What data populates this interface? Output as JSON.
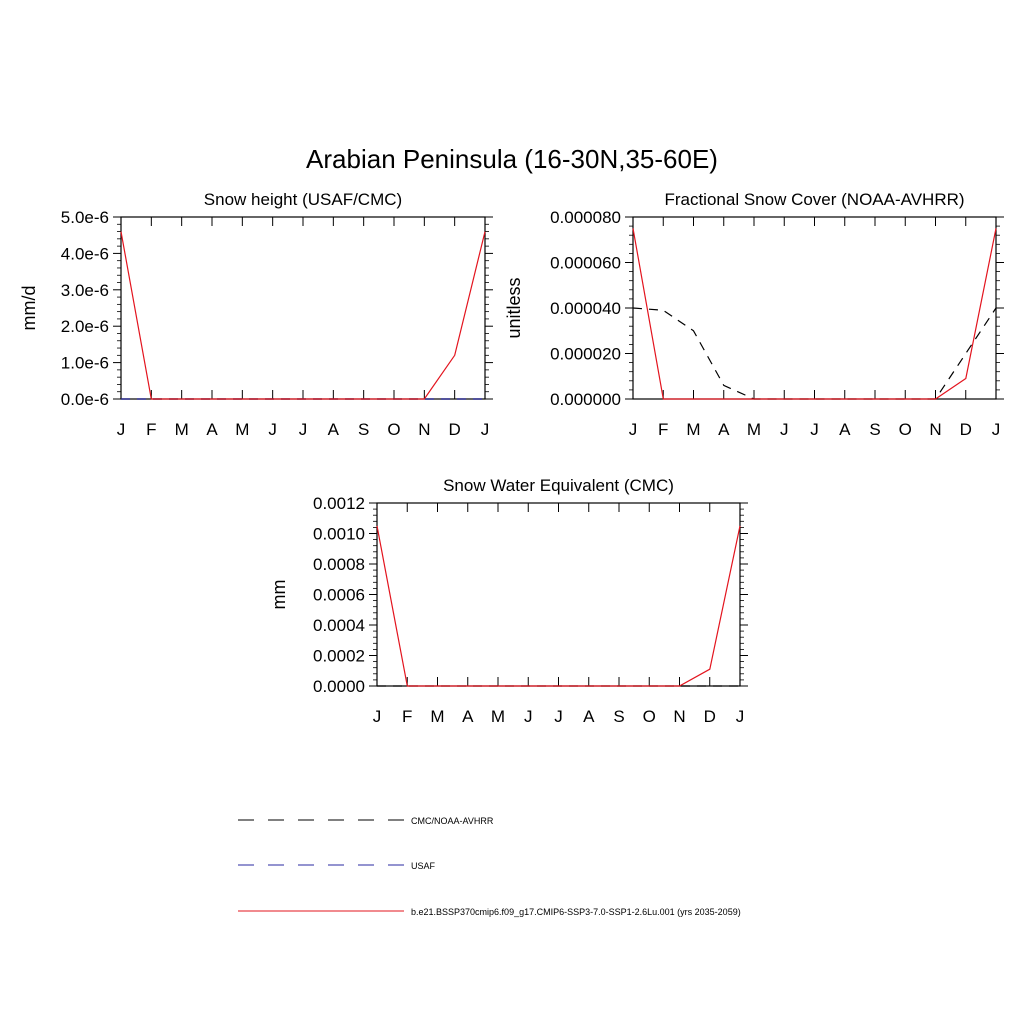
{
  "figure": {
    "title": "Arabian Peninsula (16-30N,35-60E)"
  },
  "chart_data": [
    {
      "type": "line",
      "title": "Snow height (USAF/CMC)",
      "xlabel": "",
      "ylabel": "mm/d",
      "categories": [
        "J",
        "F",
        "M",
        "A",
        "M",
        "J",
        "J",
        "A",
        "S",
        "O",
        "N",
        "D",
        "J"
      ],
      "ylim": [
        0,
        5e-06
      ],
      "ytick_values": [
        0,
        1e-06,
        2e-06,
        3e-06,
        4e-06,
        5e-06
      ],
      "ytick_labels": [
        "0.0e-6",
        "1.0e-6",
        "2.0e-6",
        "3.0e-6",
        "4.0e-6",
        "5.0e-6"
      ],
      "grid": false,
      "series": [
        {
          "name": "CMC/NOAA-AVHRR",
          "style": "dashed",
          "color": "#000000",
          "values": [
            0,
            0,
            0,
            0,
            0,
            0,
            0,
            0,
            0,
            0,
            0,
            0,
            0
          ]
        },
        {
          "name": "USAF",
          "style": "dashed",
          "color": "#2a2aa0",
          "values": [
            0,
            0,
            0,
            0,
            0,
            0,
            0,
            0,
            0,
            0,
            0,
            0,
            0
          ]
        },
        {
          "name": "b.e21.BSSP370cmip6.f09_g17.CMIP6-SSP3-7.0-SSP1-2.6Lu.001 (yrs 2035-2059)",
          "style": "solid",
          "color": "#e3141e",
          "values": [
            4.6e-06,
            0,
            0,
            0,
            0,
            0,
            0,
            0,
            0,
            0,
            0,
            1.2e-06,
            4.6e-06
          ]
        }
      ]
    },
    {
      "type": "line",
      "title": "Fractional Snow Cover (NOAA-AVHRR)",
      "xlabel": "",
      "ylabel": "unitless",
      "categories": [
        "J",
        "F",
        "M",
        "A",
        "M",
        "J",
        "J",
        "A",
        "S",
        "O",
        "N",
        "D",
        "J"
      ],
      "ylim": [
        0,
        8e-05
      ],
      "ytick_values": [
        0,
        2e-05,
        4e-05,
        6e-05,
        8e-05
      ],
      "ytick_labels": [
        "0.000000",
        "0.000020",
        "0.000040",
        "0.000060",
        "0.000080"
      ],
      "grid": false,
      "series": [
        {
          "name": "CMC/NOAA-AVHRR",
          "style": "dashed",
          "color": "#000000",
          "values": [
            4e-05,
            3.9e-05,
            3e-05,
            6e-06,
            0,
            0,
            0,
            0,
            0,
            0,
            0,
            2e-05,
            4e-05
          ]
        },
        {
          "name": "b.e21.BSSP370cmip6.f09_g17.CMIP6-SSP3-7.0-SSP1-2.6Lu.001 (yrs 2035-2059)",
          "style": "solid",
          "color": "#e3141e",
          "values": [
            7.5e-05,
            0,
            0,
            0,
            0,
            0,
            0,
            0,
            0,
            0,
            0,
            9e-06,
            7.5e-05
          ]
        }
      ]
    },
    {
      "type": "line",
      "title": "Snow Water Equivalent (CMC)",
      "xlabel": "",
      "ylabel": "mm",
      "categories": [
        "J",
        "F",
        "M",
        "A",
        "M",
        "J",
        "J",
        "A",
        "S",
        "O",
        "N",
        "D",
        "J"
      ],
      "ylim": [
        0,
        0.0012
      ],
      "ytick_values": [
        0,
        0.0002,
        0.0004,
        0.0006,
        0.0008,
        0.001,
        0.0012
      ],
      "ytick_labels": [
        "0.0000",
        "0.0002",
        "0.0004",
        "0.0006",
        "0.0008",
        "0.0010",
        "0.0012"
      ],
      "grid": false,
      "series": [
        {
          "name": "CMC/NOAA-AVHRR",
          "style": "dashed",
          "color": "#000000",
          "values": [
            0,
            0,
            0,
            0,
            0,
            0,
            0,
            0,
            0,
            0,
            0,
            0,
            0
          ]
        },
        {
          "name": "b.e21.BSSP370cmip6.f09_g17.CMIP6-SSP3-7.0-SSP1-2.6Lu.001 (yrs 2035-2059)",
          "style": "solid",
          "color": "#e3141e",
          "values": [
            0.00105,
            0,
            0,
            0,
            0,
            0,
            0,
            0,
            0,
            0,
            0,
            0.00011,
            0.00105
          ]
        }
      ]
    }
  ],
  "legend": {
    "items": [
      {
        "label": "CMC/NOAA-AVHRR",
        "style": "dashed",
        "color": "#000000"
      },
      {
        "label": "USAF",
        "style": "dashed",
        "color": "#2a2aa0"
      },
      {
        "label": "b.e21.BSSP370cmip6.f09_g17.CMIP6-SSP3-7.0-SSP1-2.6Lu.001 (yrs 2035-2059)",
        "style": "solid",
        "color": "#e3141e"
      }
    ]
  }
}
